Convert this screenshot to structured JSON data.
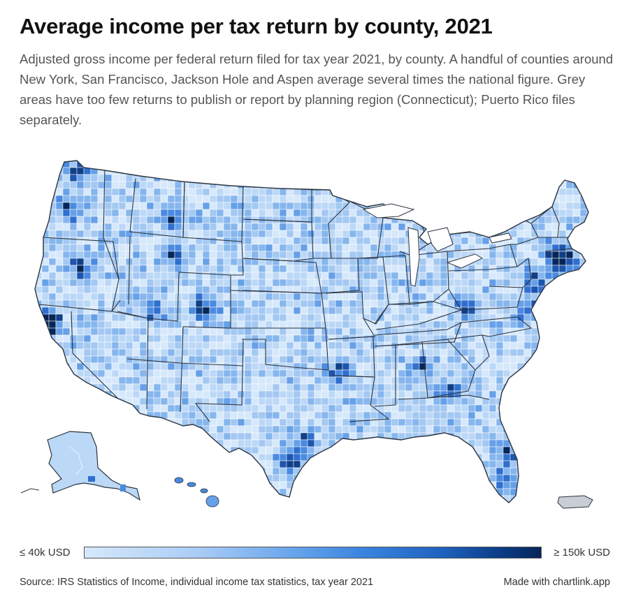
{
  "header": {
    "title": "Average income per tax return by county, 2021",
    "subtitle": "Adjusted gross income per federal return filed for tax year 2021, by county. A handful of counties around New York, San Francisco, Jackson Hole and Aspen average several times the national figure. Grey areas have too few returns to publish or report by planning region (Connecticut); Puerto Rico files separately."
  },
  "legend": {
    "min_label": "≤ 40k USD",
    "max_label": "≥ 150k USD",
    "color_low": "#d6e8fb",
    "color_high": "#062659"
  },
  "footer": {
    "source": "Source: IRS Statistics of Income, individual income tax statistics, tax year 2021",
    "made_with": "Made with chartlink.app"
  },
  "map": {
    "type": "choropleth",
    "region": "United States counties",
    "palette": [
      "#d6e8fb",
      "#bcd8f7",
      "#a3c8f2",
      "#86b6ee",
      "#66a0e8",
      "#4a8ae0",
      "#2f6fcf",
      "#1c55ad",
      "#103f88",
      "#062659"
    ],
    "border_color": "#2b3440",
    "grey_color": "#c9ced4"
  }
}
